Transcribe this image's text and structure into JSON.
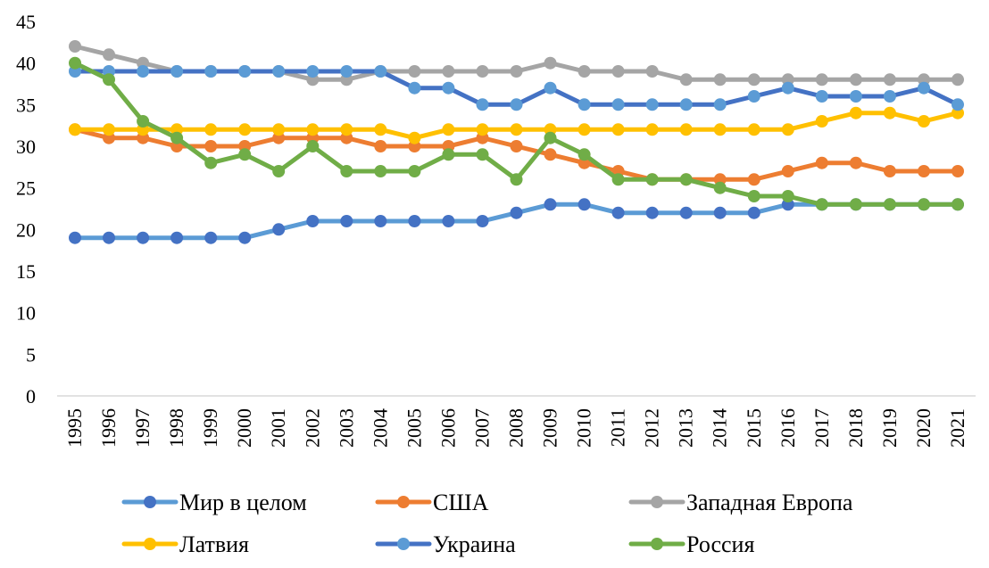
{
  "chart_data": {
    "type": "line",
    "title": "",
    "xlabel": "",
    "ylabel": "",
    "ylim": [
      0,
      45
    ],
    "yticks": [
      0,
      5,
      10,
      15,
      20,
      25,
      30,
      35,
      40,
      45
    ],
    "grid": false,
    "legend_position": "bottom",
    "x": [
      "1995",
      "1996",
      "1997",
      "1998",
      "1999",
      "2000",
      "2001",
      "2002",
      "2003",
      "2004",
      "2005",
      "2006",
      "2007",
      "2008",
      "2009",
      "2010",
      "2011",
      "2012",
      "2013",
      "2014",
      "2015",
      "2016",
      "2017",
      "2018",
      "2019",
      "2020",
      "2021"
    ],
    "series": [
      {
        "name": "Мир в целом",
        "line_color": "#5B9BD5",
        "marker_color": "#4472C4",
        "values": [
          19,
          19,
          19,
          19,
          19,
          19,
          20,
          21,
          21,
          21,
          21,
          21,
          21,
          22,
          23,
          23,
          22,
          22,
          22,
          22,
          22,
          23,
          23,
          23,
          23,
          23,
          23
        ]
      },
      {
        "name": "США",
        "line_color": "#ED7D31",
        "marker_color": "#ED7D31",
        "values": [
          32,
          31,
          31,
          30,
          30,
          30,
          31,
          31,
          31,
          30,
          30,
          30,
          31,
          30,
          29,
          28,
          27,
          26,
          26,
          26,
          26,
          27,
          28,
          28,
          27,
          27,
          27
        ]
      },
      {
        "name": "Западная Европа",
        "line_color": "#A5A5A5",
        "marker_color": "#A5A5A5",
        "values": [
          42,
          41,
          40,
          39,
          39,
          39,
          39,
          38,
          38,
          39,
          39,
          39,
          39,
          39,
          40,
          39,
          39,
          39,
          38,
          38,
          38,
          38,
          38,
          38,
          38,
          38,
          38
        ]
      },
      {
        "name": "Латвия",
        "line_color": "#FFC000",
        "marker_color": "#FFC000",
        "values": [
          32,
          32,
          32,
          32,
          32,
          32,
          32,
          32,
          32,
          32,
          31,
          32,
          32,
          32,
          32,
          32,
          32,
          32,
          32,
          32,
          32,
          32,
          33,
          34,
          34,
          33,
          34
        ]
      },
      {
        "name": "Украина",
        "line_color": "#4472C4",
        "marker_color": "#5B9BD5",
        "values": [
          39,
          39,
          39,
          39,
          39,
          39,
          39,
          39,
          39,
          39,
          37,
          37,
          35,
          35,
          37,
          35,
          35,
          35,
          35,
          35,
          36,
          37,
          36,
          36,
          36,
          37,
          35
        ]
      },
      {
        "name": "Россия",
        "line_color": "#70AD47",
        "marker_color": "#70AD47",
        "values": [
          40,
          38,
          33,
          31,
          28,
          29,
          27,
          30,
          27,
          27,
          27,
          29,
          29,
          26,
          31,
          29,
          26,
          26,
          26,
          25,
          24,
          24,
          23,
          23,
          23,
          23,
          23
        ]
      }
    ],
    "draw_order": [
      "Мир в целом",
      "США",
      "Латвия",
      "Западная Европа",
      "Украина",
      "Россия"
    ]
  }
}
